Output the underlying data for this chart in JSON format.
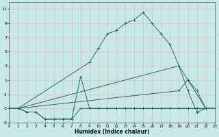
{
  "xlabel": "Humidex (Indice chaleur)",
  "background_color": "#c8e8e8",
  "grid_color": "#e8b8b8",
  "line_color": "#2a6b60",
  "xlim": [
    0,
    23
  ],
  "ylim": [
    -5,
    12
  ],
  "xticks": [
    0,
    1,
    2,
    3,
    4,
    5,
    6,
    7,
    8,
    9,
    10,
    11,
    12,
    13,
    14,
    15,
    16,
    17,
    18,
    19,
    20,
    21,
    22,
    23
  ],
  "yticks": [
    -5,
    -3,
    -1,
    1,
    3,
    5,
    7,
    9,
    11
  ],
  "series": [
    {
      "x": [
        0,
        1,
        2,
        3,
        4,
        5,
        6,
        7,
        8,
        9,
        10,
        11,
        12,
        13,
        14,
        15,
        16,
        17,
        18,
        19,
        20,
        21,
        22,
        23
      ],
      "y": [
        -3,
        -3,
        -3.5,
        -3.5,
        -4.5,
        -4.5,
        -4.5,
        -4.5,
        -3,
        -3,
        -3,
        -3,
        -3,
        -3,
        -3,
        -3,
        -3,
        -3,
        -3,
        -3,
        -3,
        -3,
        -3,
        -3
      ]
    },
    {
      "x": [
        0,
        1,
        2,
        3,
        4,
        5,
        6,
        7,
        8,
        9,
        10,
        11,
        12,
        13,
        14,
        15,
        16,
        17,
        18,
        19,
        20,
        21,
        22,
        23
      ],
      "y": [
        -3,
        -3,
        -3.5,
        -3.5,
        -4.5,
        -4.5,
        -4.5,
        -4.5,
        1.5,
        -3,
        -3,
        -3,
        -3,
        -3,
        -3,
        -3,
        -3,
        -3,
        -3,
        -3,
        -3,
        -3,
        -3,
        -3
      ]
    },
    {
      "x": [
        0,
        1,
        19,
        20,
        22,
        23
      ],
      "y": [
        -3,
        -3,
        3,
        1,
        -3,
        -3
      ]
    },
    {
      "x": [
        0,
        1,
        19,
        20,
        21,
        22,
        23
      ],
      "y": [
        -3,
        -3,
        -0.5,
        1,
        -0.5,
        -3,
        -3
      ]
    },
    {
      "x": [
        0,
        1,
        9,
        10,
        11,
        12,
        13,
        14,
        15,
        16,
        17,
        18,
        19,
        20,
        21,
        22,
        23
      ],
      "y": [
        -3,
        -3,
        3.5,
        5.5,
        7.5,
        8,
        9,
        9.5,
        10.5,
        9,
        7.5,
        6,
        3,
        -0.5,
        -3.5,
        -3,
        -3
      ]
    }
  ]
}
